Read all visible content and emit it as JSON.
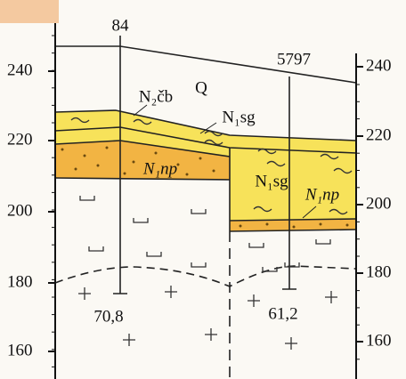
{
  "boreholes": [
    {
      "label": "84",
      "depth": "70,8"
    },
    {
      "label": "5797",
      "depth": "61,2"
    }
  ],
  "layers": {
    "quaternary": "Q",
    "chokrak": "N₂čb",
    "sg_left": "N₁sg",
    "np_left": "N₁np",
    "sg_right": "N₁sg",
    "np_right": "N₁np"
  },
  "left_axis": [
    "240",
    "220",
    "200",
    "180",
    "160"
  ],
  "right_axis": [
    "240",
    "220",
    "200",
    "180",
    "160"
  ]
}
